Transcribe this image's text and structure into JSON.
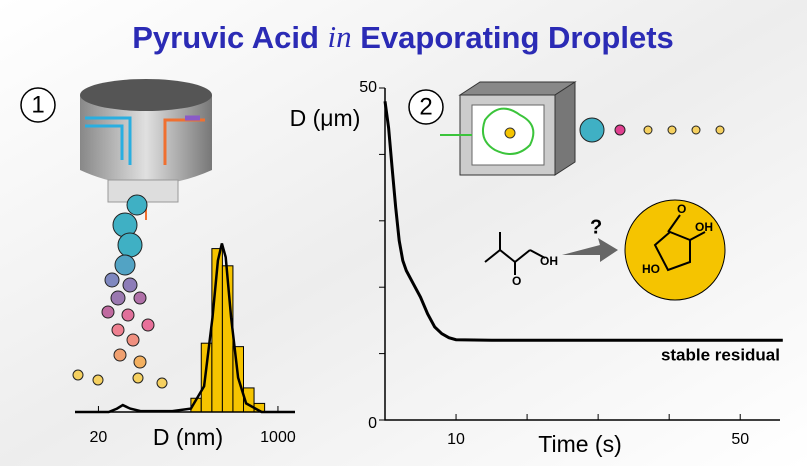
{
  "title": {
    "before": "Pyruvic Acid",
    "italic": "in",
    "after": "Evaporating Droplets"
  },
  "labels": {
    "panel_1": "1",
    "panel_2": "2",
    "question": "?",
    "reactant_oh": "OH",
    "reactant_o": "O",
    "product_oh": "OH",
    "product_ho": "HO",
    "product_o": "O"
  },
  "chart_data": [
    {
      "type": "histogram",
      "xlabel": "D (nm)",
      "log_x": true,
      "xlim": [
        12,
        1450
      ],
      "xticks": [
        20,
        1000
      ],
      "ylim": [
        0,
        100
      ],
      "bins": [
        150,
        188,
        237,
        298,
        375,
        472,
        594,
        748
      ],
      "counts": [
        8,
        40,
        95,
        85,
        38,
        14,
        5
      ],
      "color": "#f5c400",
      "fit": {
        "color": "#000000",
        "x": [
          12,
          25,
          30,
          34,
          40,
          50,
          100,
          150,
          200,
          240,
          270,
          295,
          320,
          360,
          420,
          500,
          700,
          1450
        ],
        "y": [
          0,
          0,
          2,
          4,
          2,
          0.5,
          0.5,
          2,
          15,
          55,
          88,
          98,
          90,
          55,
          20,
          5,
          0,
          0
        ]
      }
    },
    {
      "type": "line",
      "ylabel": "D (μm)",
      "xlabel": "Time (s)",
      "annotation": "stable residual",
      "xlim": [
        0,
        55.6
      ],
      "xticks": [
        10,
        50
      ],
      "xminor": [
        20,
        30,
        40
      ],
      "ylim": [
        0,
        50
      ],
      "yticks": [
        0,
        50
      ],
      "yminor": [
        10,
        20,
        30,
        40
      ],
      "x": [
        0,
        0.5,
        1,
        1.5,
        2,
        2.5,
        3,
        4,
        5,
        6,
        7,
        8,
        9,
        10,
        15,
        20,
        30,
        40,
        50,
        56
      ],
      "y": [
        48,
        44,
        38,
        32,
        27,
        24,
        22.5,
        20.5,
        18.5,
        16,
        14,
        13,
        12.4,
        12.1,
        12,
        12,
        12,
        12,
        12,
        12
      ],
      "color": "#000000"
    }
  ]
}
